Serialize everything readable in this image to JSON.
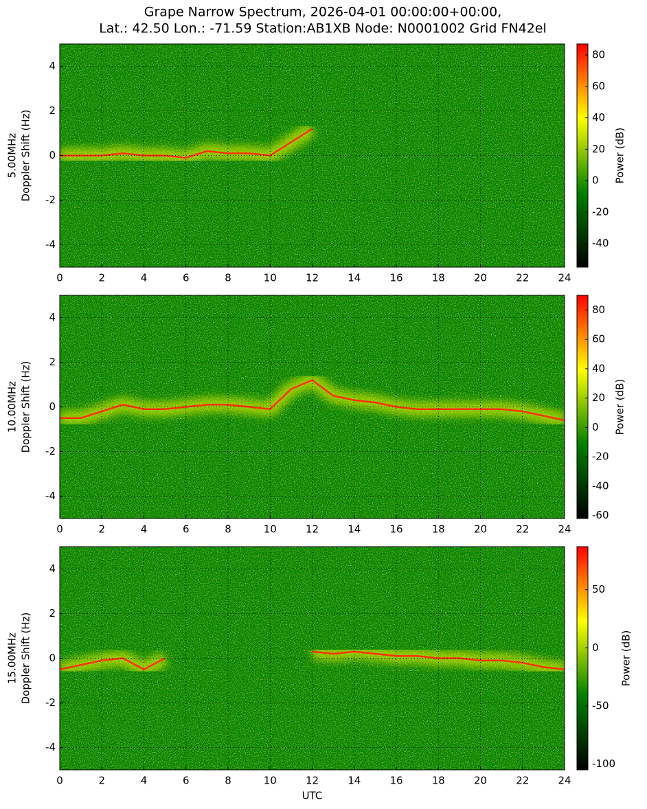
{
  "title": [
    "Grape Narrow Spectrum, 2026-04-01 00:00:00+00:00,",
    "Lat.: 42.50 Lon.: -71.59 Station:AB1XB Node: N0001002 Grid FN42el"
  ],
  "chart_data": [
    {
      "type": "spectrogram",
      "ylabel": [
        "5.00MHz",
        "Doppler Shift (Hz)"
      ],
      "xlim": [
        0,
        24
      ],
      "xticks": [
        0,
        2,
        4,
        6,
        8,
        10,
        12,
        14,
        16,
        18,
        20,
        22,
        24
      ],
      "ylim": [
        -5,
        5
      ],
      "yticks": [
        -4,
        -2,
        0,
        2,
        4
      ],
      "grid": true,
      "clim": [
        -55,
        87
      ],
      "cticks": [
        -40,
        -20,
        0,
        20,
        40,
        60,
        80
      ],
      "clabel": "Power (dB)",
      "colormap": [
        "#000000",
        "#008000",
        "#ffff00",
        "#ff0000"
      ],
      "x": [
        0,
        1,
        2,
        3,
        4,
        5,
        6,
        7,
        8,
        9,
        10,
        11,
        12,
        13,
        14,
        15,
        16,
        17,
        18,
        19,
        20,
        21,
        22,
        23,
        24
      ],
      "series": [
        {
          "color": "#ff3000",
          "values": [
            0,
            0,
            0,
            0.1,
            0,
            0,
            -0.1,
            0.2,
            0.1,
            0.1,
            0,
            0.6,
            1.2,
            null,
            null,
            null,
            null,
            null,
            null,
            null,
            null,
            null,
            null,
            null,
            null
          ]
        }
      ]
    },
    {
      "type": "spectrogram",
      "ylabel": [
        "10.00MHz",
        "Doppler Shift (Hz)"
      ],
      "xlim": [
        0,
        24
      ],
      "xticks": [
        0,
        2,
        4,
        6,
        8,
        10,
        12,
        14,
        16,
        18,
        20,
        22,
        24
      ],
      "ylim": [
        -5,
        5
      ],
      "yticks": [
        -4,
        -2,
        0,
        2,
        4
      ],
      "grid": true,
      "clim": [
        -62,
        90
      ],
      "cticks": [
        -60,
        -40,
        -20,
        0,
        20,
        40,
        60,
        80
      ],
      "clabel": "Power (dB)",
      "colormap": [
        "#000000",
        "#008000",
        "#ffff00",
        "#ff0000"
      ],
      "x": [
        0,
        1,
        2,
        3,
        4,
        5,
        6,
        7,
        8,
        9,
        10,
        11,
        12,
        13,
        14,
        15,
        16,
        17,
        18,
        19,
        20,
        21,
        22,
        23,
        24
      ],
      "series": [
        {
          "color": "#ff3000",
          "values": [
            -0.5,
            -0.5,
            -0.2,
            0.1,
            -0.1,
            -0.1,
            0,
            0.1,
            0.1,
            0,
            -0.1,
            0.8,
            1.2,
            0.5,
            0.3,
            0.2,
            0,
            -0.1,
            -0.1,
            -0.1,
            -0.1,
            -0.1,
            -0.2,
            -0.4,
            -0.6
          ]
        }
      ]
    },
    {
      "type": "spectrogram",
      "ylabel": [
        "15.00MHz",
        "Doppler Shift (Hz)"
      ],
      "xlabel": "UTC",
      "xlim": [
        0,
        24
      ],
      "xticks": [
        0,
        2,
        4,
        6,
        8,
        10,
        12,
        14,
        16,
        18,
        20,
        22,
        24
      ],
      "ylim": [
        -5,
        5
      ],
      "yticks": [
        -4,
        -2,
        0,
        2,
        4
      ],
      "grid": true,
      "clim": [
        -105,
        87
      ],
      "cticks": [
        -100,
        -50,
        0,
        50
      ],
      "clabel": "Power (dB)",
      "colormap": [
        "#000000",
        "#008000",
        "#ffff00",
        "#ff0000"
      ],
      "x": [
        0,
        1,
        2,
        3,
        4,
        5,
        6,
        7,
        8,
        9,
        10,
        11,
        12,
        13,
        14,
        15,
        16,
        17,
        18,
        19,
        20,
        21,
        22,
        23,
        24
      ],
      "series": [
        {
          "color": "#ff3000",
          "values": [
            -0.5,
            -0.3,
            -0.1,
            0,
            -0.5,
            0,
            null,
            null,
            null,
            null,
            null,
            null,
            0.3,
            0.2,
            0.3,
            0.2,
            0.1,
            0.1,
            0,
            0,
            -0.1,
            -0.1,
            -0.2,
            -0.4,
            -0.5
          ]
        }
      ]
    }
  ]
}
